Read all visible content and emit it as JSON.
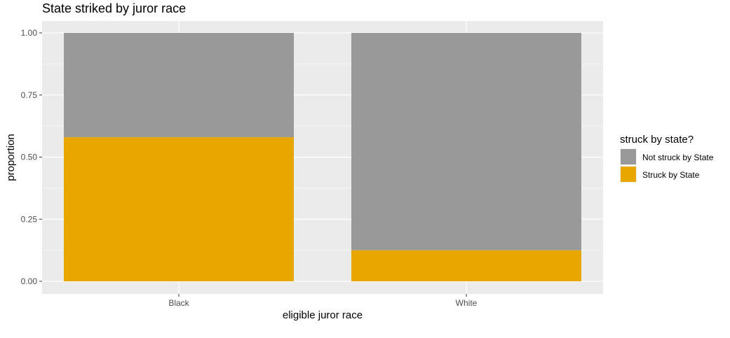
{
  "chart_data": {
    "type": "bar",
    "stacked": true,
    "title": "State striked by juror race",
    "xlabel": "eligible juror race",
    "ylabel": "proportion",
    "categories": [
      "Black",
      "White"
    ],
    "ylim": [
      0,
      1
    ],
    "yticks": [
      "0.00",
      "0.25",
      "0.50",
      "0.75",
      "1.00"
    ],
    "grid": true,
    "legend_position": "right",
    "legend_title": "struck by state?",
    "series": [
      {
        "name": "Struck by State",
        "values": [
          0.58,
          0.125
        ],
        "color": "#E8A600"
      },
      {
        "name": "Not struck by State",
        "values": [
          0.42,
          0.875
        ],
        "color": "#999999"
      }
    ],
    "legend_order": [
      "Not struck by State",
      "Struck by State"
    ],
    "panel_background": "#EBEBEB",
    "grid_color": "#FFFFFF"
  }
}
